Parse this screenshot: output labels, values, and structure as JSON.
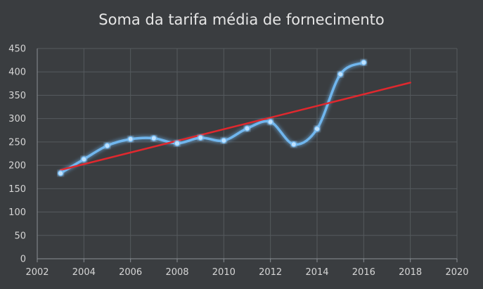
{
  "chart_data": {
    "type": "line",
    "title": "Soma da tarifa média de fornecimento",
    "xlabel": "",
    "ylabel": "",
    "xlim": [
      2002,
      2020
    ],
    "ylim": [
      0,
      450
    ],
    "x_ticks": [
      2002,
      2004,
      2006,
      2008,
      2010,
      2012,
      2014,
      2016,
      2018,
      2020
    ],
    "y_ticks": [
      0,
      50,
      100,
      150,
      200,
      250,
      300,
      350,
      400,
      450
    ],
    "grid": true,
    "legend": "none",
    "series": [
      {
        "x": [
          2003,
          2004,
          2005,
          2006,
          2007,
          2008,
          2009,
          2010,
          2011,
          2012,
          2013,
          2014,
          2015,
          2016
        ],
        "y": [
          183,
          213,
          242,
          256,
          258,
          247,
          259,
          253,
          279,
          293,
          245,
          278,
          395,
          420
        ],
        "color": "#6fb6ee",
        "style": "smooth-line-with-markers-glow"
      },
      {
        "x": [
          2003,
          2018
        ],
        "y": [
          190,
          377
        ],
        "color": "#e0282e",
        "style": "linear-trendline"
      }
    ]
  },
  "colors": {
    "background": "#3a3d40",
    "grid": "#555a5e",
    "axis": "#8a8f94",
    "text": "#d6d6d6"
  }
}
